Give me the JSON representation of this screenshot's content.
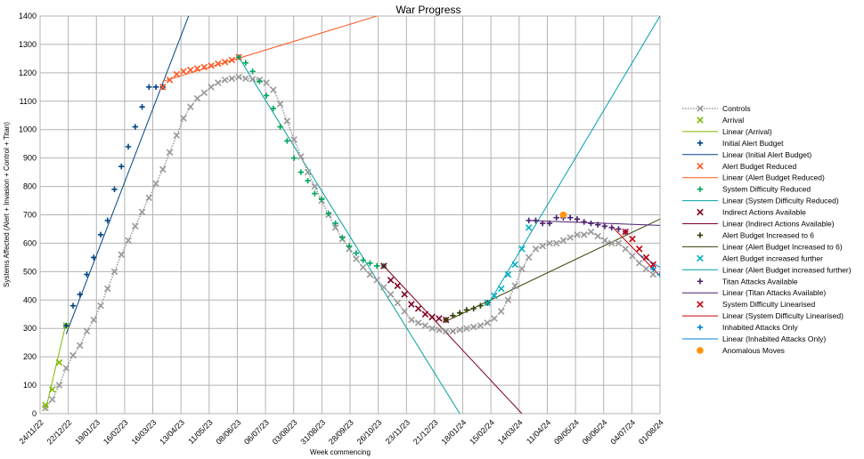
{
  "chart_data": {
    "type": "scatter",
    "title": "War Progress",
    "xlabel": "Week commencing",
    "ylabel": "Systems Affected (Alert + Invasion + Control + Titan)",
    "ylim": [
      0,
      1400
    ],
    "yticks": [
      0,
      100,
      200,
      300,
      400,
      500,
      600,
      700,
      800,
      900,
      1000,
      1100,
      1200,
      1300,
      1400
    ],
    "xlim_weeks": [
      0,
      89
    ],
    "xtick_labels": [
      "24/11/22",
      "22/12/22",
      "19/01/23",
      "16/02/23",
      "16/03/23",
      "13/04/23",
      "11/05/23",
      "08/06/23",
      "06/07/23",
      "03/08/23",
      "31/08/23",
      "28/09/23",
      "26/10/23",
      "23/11/23",
      "21/12/23",
      "18/01/24",
      "15/02/24",
      "14/03/24",
      "11/04/24",
      "09/05/24",
      "06/06/24",
      "04/07/24",
      "01/08/24"
    ],
    "grid": true,
    "legend_position": "right",
    "series": [
      {
        "name": "Controls",
        "color": "#999999",
        "marker": "x",
        "line": "dotted",
        "x": [
          0,
          1,
          2,
          3,
          4,
          5,
          6,
          7,
          8,
          9,
          10,
          11,
          12,
          13,
          14,
          15,
          16,
          17,
          18,
          19,
          20,
          21,
          22,
          23,
          24,
          25,
          26,
          27,
          28,
          29,
          30,
          31,
          32,
          33,
          34,
          35,
          36,
          37,
          38,
          39,
          40,
          41,
          42,
          43,
          44,
          45,
          46,
          47,
          48,
          49,
          50,
          51,
          52,
          53,
          54,
          55,
          56,
          57,
          58,
          59,
          60,
          61,
          62,
          63,
          64,
          65,
          66,
          67,
          68,
          69,
          70,
          71,
          72,
          73,
          74,
          75,
          76,
          77,
          78,
          79,
          80,
          81,
          82,
          83,
          84,
          85,
          86,
          87,
          88
        ],
        "y": [
          20,
          50,
          100,
          160,
          205,
          240,
          290,
          330,
          380,
          440,
          500,
          560,
          610,
          660,
          710,
          760,
          810,
          860,
          920,
          980,
          1040,
          1080,
          1110,
          1130,
          1150,
          1165,
          1175,
          1180,
          1185,
          1180,
          1178,
          1175,
          1165,
          1140,
          1090,
          1030,
          965,
          905,
          850,
          800,
          750,
          700,
          655,
          615,
          580,
          545,
          515,
          490,
          470,
          445,
          420,
          390,
          360,
          330,
          320,
          310,
          300,
          295,
          290,
          290,
          295,
          300,
          305,
          310,
          320,
          335,
          360,
          400,
          450,
          510,
          550,
          580,
          590,
          600,
          600,
          610,
          620,
          630,
          630,
          640,
          625,
          610,
          600,
          600,
          580,
          555,
          530,
          510,
          490
        ]
      },
      {
        "name": "Arrival",
        "color": "#7fb800",
        "marker": "x",
        "x": [
          0,
          1,
          2,
          3
        ],
        "y": [
          30,
          85,
          180,
          310
        ]
      },
      {
        "name": "Initial Alert Budget",
        "color": "#004586",
        "marker": "+",
        "x": [
          3,
          4,
          5,
          6,
          7,
          8,
          9,
          10,
          11,
          12,
          13,
          14,
          15,
          16,
          17
        ],
        "y": [
          310,
          380,
          420,
          490,
          550,
          630,
          680,
          790,
          870,
          940,
          1010,
          1080,
          1150,
          1150,
          1150
        ]
      },
      {
        "name": "Alert Budget Reduced",
        "color": "#ff5722",
        "marker": "x",
        "x": [
          17,
          18,
          19,
          20,
          21,
          22,
          23,
          24,
          25,
          26,
          27,
          28
        ],
        "y": [
          1150,
          1175,
          1195,
          1205,
          1210,
          1215,
          1220,
          1225,
          1232,
          1238,
          1245,
          1255
        ]
      },
      {
        "name": "System Difficulty Reduced",
        "color": "#00a65d",
        "marker": "+",
        "x": [
          28,
          29,
          30,
          31,
          32,
          33,
          34,
          35,
          36,
          37,
          38,
          39,
          40,
          41,
          42,
          43,
          44,
          45,
          46,
          47,
          48,
          49
        ],
        "y": [
          1255,
          1235,
          1205,
          1170,
          1120,
          1075,
          1010,
          960,
          900,
          850,
          820,
          775,
          755,
          705,
          670,
          620,
          590,
          565,
          540,
          530,
          520,
          520
        ]
      },
      {
        "name": "Indirect Actions Available",
        "color": "#7e0021",
        "marker": "x",
        "x": [
          49,
          50,
          51,
          52,
          53,
          54,
          55,
          56,
          57,
          58
        ],
        "y": [
          520,
          470,
          450,
          420,
          385,
          370,
          350,
          340,
          335,
          330
        ]
      },
      {
        "name": "Alert Budget Increased to 6",
        "color": "#314004",
        "marker": "+",
        "x": [
          58,
          59,
          60,
          61,
          62,
          63,
          64
        ],
        "y": [
          330,
          345,
          355,
          365,
          370,
          380,
          390
        ]
      },
      {
        "name": "Alert Budget increased further",
        "color": "#00b0c0",
        "marker": "x",
        "x": [
          64,
          65,
          66,
          67,
          68,
          69,
          70
        ],
        "y": [
          390,
          415,
          440,
          490,
          525,
          580,
          655
        ]
      },
      {
        "name": "Titan Attacks Available",
        "color": "#4b1f6f",
        "marker": "+",
        "x": [
          70,
          71,
          72,
          73,
          74,
          75,
          76,
          77,
          78,
          79,
          80,
          81,
          82,
          83,
          84
        ],
        "y": [
          680,
          680,
          670,
          670,
          690,
          690,
          690,
          685,
          675,
          670,
          665,
          660,
          655,
          650,
          640
        ]
      },
      {
        "name": "System Difficulty Linearised",
        "color": "#c5000b",
        "marker": "x",
        "x": [
          84,
          85,
          86,
          87,
          88
        ],
        "y": [
          640,
          615,
          580,
          550,
          525
        ]
      },
      {
        "name": "Inhabited Attacks Only",
        "color": "#0084d1",
        "marker": "+",
        "x": [
          88,
          89
        ],
        "y": [
          510,
          490
        ]
      },
      {
        "name": "Anomalous Moves",
        "color": "#ff950e",
        "marker": "dot",
        "x": [
          75
        ],
        "y": [
          700
        ]
      }
    ],
    "trendlines": [
      {
        "name": "Linear (Arrival)",
        "color": "#7fb800",
        "x": [
          0,
          3
        ],
        "y": [
          10,
          320
        ]
      },
      {
        "name": "Linear (Initial Alert Budget)",
        "color": "#004586",
        "x": [
          3,
          22
        ],
        "y": [
          280,
          1480
        ]
      },
      {
        "name": "Linear (Alert Budget Reduced)",
        "color": "#ff5722",
        "x": [
          17,
          48
        ],
        "y": [
          1170,
          1400
        ]
      },
      {
        "name": "Linear (System Difficulty Reduced)",
        "color": "#00a0a0",
        "x": [
          28,
          60
        ],
        "y": [
          1255,
          0
        ]
      },
      {
        "name": "Linear (Indirect Actions Available)",
        "color": "#7e0021",
        "x": [
          49,
          69
        ],
        "y": [
          520,
          0
        ]
      },
      {
        "name": "Linear (Alert Budget Increased to 6)",
        "color": "#314004",
        "x": [
          58,
          92
        ],
        "y": [
          325,
          720
        ]
      },
      {
        "name": "Linear (Alert Budget increased further)",
        "color": "#00a0b0",
        "x": [
          64,
          89
        ],
        "y": [
          380,
          1400
        ]
      },
      {
        "name": "Linear (Titan Attacks Available)",
        "color": "#4b1f6f",
        "x": [
          70,
          92
        ],
        "y": [
          680,
          660
        ]
      },
      {
        "name": "Linear (System Difficulty Linearised)",
        "color": "#c5000b",
        "x": [
          82,
          92
        ],
        "y": [
          660,
          410
        ]
      },
      {
        "name": "Linear (Inhabited Attacks Only)",
        "color": "#0084d1",
        "x": [
          86,
          92
        ],
        "y": [
          560,
          470
        ]
      }
    ],
    "legend": [
      {
        "label": "Controls",
        "color": "#999999",
        "kind": "dotline-x"
      },
      {
        "label": "Arrival",
        "color": "#7fb800",
        "kind": "x"
      },
      {
        "label": "Linear (Arrival)",
        "color": "#7fb800",
        "kind": "line"
      },
      {
        "label": "Initial Alert Budget",
        "color": "#004586",
        "kind": "plus"
      },
      {
        "label": "Linear (Initial Alert Budget)",
        "color": "#004586",
        "kind": "line"
      },
      {
        "label": "Alert Budget Reduced",
        "color": "#ff5722",
        "kind": "x"
      },
      {
        "label": "Linear (Alert Budget Reduced)",
        "color": "#ff5722",
        "kind": "line"
      },
      {
        "label": "System Difficulty Reduced",
        "color": "#00a65d",
        "kind": "plus"
      },
      {
        "label": "Linear (System Difficulty Reduced)",
        "color": "#00a0a0",
        "kind": "line"
      },
      {
        "label": "Indirect Actions Available",
        "color": "#7e0021",
        "kind": "x"
      },
      {
        "label": "Linear (Indirect Actions Available)",
        "color": "#7e0021",
        "kind": "line"
      },
      {
        "label": "Alert Budget Increased to 6",
        "color": "#314004",
        "kind": "plus"
      },
      {
        "label": "Linear (Alert Budget Increased to 6)",
        "color": "#314004",
        "kind": "line"
      },
      {
        "label": "Alert Budget increased further",
        "color": "#00b0c0",
        "kind": "x"
      },
      {
        "label": "Linear (Alert Budget increased further)",
        "color": "#00a0b0",
        "kind": "line"
      },
      {
        "label": "Titan Attacks Available",
        "color": "#4b1f6f",
        "kind": "plus"
      },
      {
        "label": "Linear (Titan Attacks Available)",
        "color": "#4b1f6f",
        "kind": "line"
      },
      {
        "label": "System Difficulty Linearised",
        "color": "#c5000b",
        "kind": "x"
      },
      {
        "label": "Linear (System Difficulty Linearised)",
        "color": "#c5000b",
        "kind": "line"
      },
      {
        "label": "Inhabited Attacks Only",
        "color": "#0084d1",
        "kind": "plus"
      },
      {
        "label": "Linear (Inhabited Attacks Only)",
        "color": "#0084d1",
        "kind": "line"
      },
      {
        "label": "Anomalous Moves",
        "color": "#ff950e",
        "kind": "dot"
      }
    ]
  }
}
